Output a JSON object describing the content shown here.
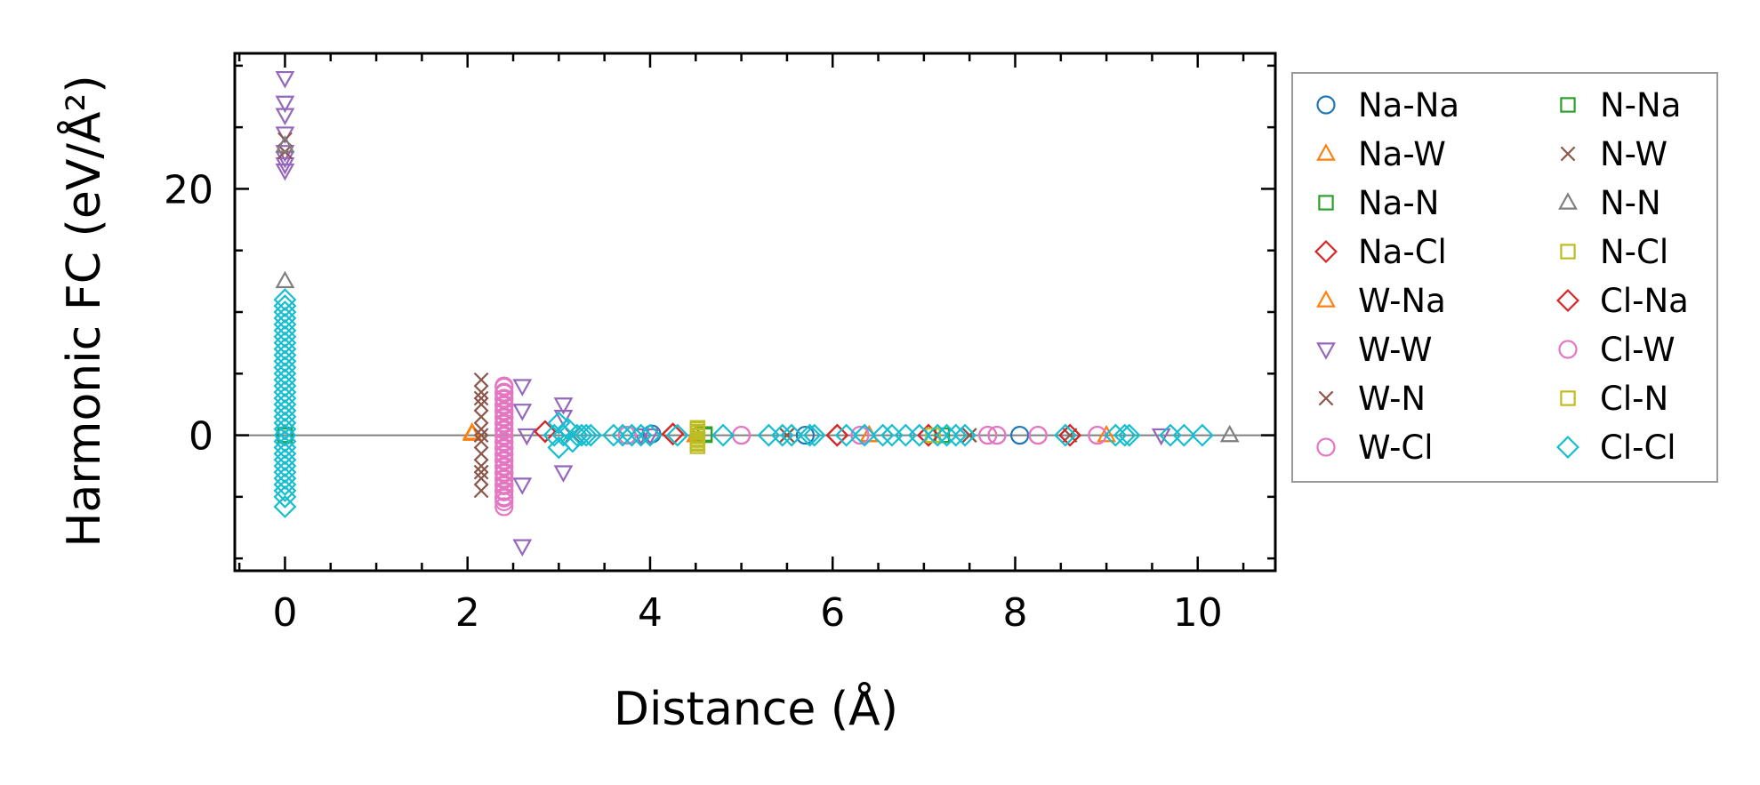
{
  "chart_data": {
    "type": "scatter",
    "xlabel": "Distance (Å)",
    "ylabel": "Harmonic FC (eV/Å²)",
    "xlim": [
      -0.55,
      10.85
    ],
    "ylim": [
      -11,
      31
    ],
    "x_ticks": [
      0,
      2,
      4,
      6,
      8,
      10
    ],
    "y_ticks": [
      0,
      20
    ],
    "reference_line_y": 0,
    "legend_position": "outside-right",
    "series": [
      {
        "name": "Na-Na",
        "marker": "circle",
        "color": "#1f77b4",
        "x": [
          0,
          4.02,
          5.7,
          8.05
        ],
        "y": [
          0,
          0.1,
          0,
          0
        ]
      },
      {
        "name": "Na-W",
        "marker": "triangle-up",
        "color": "#ff7f0e",
        "x": [
          2.05,
          4.5,
          6.4,
          9.0
        ],
        "y": [
          0.2,
          0,
          0,
          0
        ]
      },
      {
        "name": "Na-N",
        "marker": "square",
        "color": "#2ca02c",
        "x": [
          0,
          4.6,
          7.2
        ],
        "y": [
          0,
          0.1,
          0
        ]
      },
      {
        "name": "Na-Cl",
        "marker": "diamond",
        "color": "#d62728",
        "x": [
          2.85,
          4.25,
          6.05,
          7.05,
          8.6
        ],
        "y": [
          0.3,
          0.1,
          0,
          0,
          0
        ]
      },
      {
        "name": "W-Na",
        "marker": "triangle-up",
        "color": "#ff7f0e",
        "x": [
          2.05,
          4.5,
          6.4
        ],
        "y": [
          0.1,
          0,
          0
        ]
      },
      {
        "name": "W-W",
        "marker": "triangle-down",
        "color": "#9467bd",
        "x": [
          0,
          0,
          0,
          0,
          0,
          0,
          0,
          0,
          2.6,
          2.6,
          2.6,
          2.6,
          2.65,
          3.05,
          3.05,
          3.05,
          3.9,
          4.0,
          9.6
        ],
        "y": [
          29,
          27,
          26,
          24.5,
          23,
          22.5,
          22,
          21.5,
          4,
          2,
          -4,
          -9,
          0,
          2.5,
          1.5,
          -3,
          0,
          0,
          0
        ]
      },
      {
        "name": "W-N",
        "marker": "x",
        "color": "#8c564b",
        "x": [
          0,
          0,
          2.15,
          2.15,
          2.15,
          2.15,
          2.15,
          2.15,
          2.15,
          2.15,
          2.15,
          2.15,
          2.15,
          2.15,
          2.15,
          3.15,
          5.5,
          7.5
        ],
        "y": [
          24,
          23,
          4.5,
          3.5,
          2.5,
          1.5,
          0.5,
          -0.5,
          -1.5,
          -2.5,
          -3.5,
          -4.5,
          3,
          -3,
          0,
          0,
          0,
          0
        ]
      },
      {
        "name": "W-Cl",
        "marker": "circle",
        "color": "#e377c2",
        "x": [
          2.4,
          2.4,
          2.4,
          2.4,
          2.4,
          2.4,
          2.4,
          2.4,
          2.4,
          2.4,
          2.4,
          2.4,
          2.4,
          2.4,
          2.4,
          2.4,
          2.4,
          2.4,
          2.4,
          2.4,
          3.75,
          5.0,
          6.3,
          7.7,
          7.8,
          8.25,
          8.9
        ],
        "y": [
          4,
          3.5,
          3,
          2.5,
          2,
          1.5,
          1,
          0.5,
          0,
          -0.5,
          -1,
          -1.5,
          -2,
          -2.5,
          -3,
          -3.5,
          -4,
          -4.5,
          -5,
          -5.8,
          0,
          0,
          0,
          0,
          0,
          0,
          0
        ]
      },
      {
        "name": "N-Na",
        "marker": "square",
        "color": "#2ca02c",
        "x": [
          4.6,
          7.2
        ],
        "y": [
          0,
          0
        ]
      },
      {
        "name": "N-W",
        "marker": "x",
        "color": "#8c564b",
        "x": [
          3.15,
          5.5,
          7.5,
          8.6
        ],
        "y": [
          0,
          0,
          0,
          0
        ]
      },
      {
        "name": "N-N",
        "marker": "triangle-up",
        "color": "#7f7f7f",
        "x": [
          0,
          0,
          10.35
        ],
        "y": [
          12.5,
          23.5,
          0
        ]
      },
      {
        "name": "N-Cl",
        "marker": "square",
        "color": "#bcbd22",
        "x": [
          4.52,
          4.52,
          4.52,
          4.52,
          4.52,
          4.52,
          7.1
        ],
        "y": [
          0.6,
          0.3,
          0,
          -0.3,
          -0.6,
          -0.9,
          0
        ]
      },
      {
        "name": "Cl-Na",
        "marker": "diamond",
        "color": "#d62728",
        "x": [
          2.85,
          4.25,
          6.05,
          7.05,
          8.6
        ],
        "y": [
          0.3,
          0.1,
          0,
          0,
          0
        ]
      },
      {
        "name": "Cl-W",
        "marker": "circle",
        "color": "#e377c2",
        "x": [
          2.4,
          2.4,
          2.4,
          2.4,
          2.4,
          2.4,
          2.4,
          2.4,
          2.4,
          2.4,
          2.4,
          2.4,
          2.4,
          2.4,
          2.4,
          2.4,
          2.4,
          2.4,
          2.4,
          2.4,
          3.75,
          5.0,
          6.3,
          7.7,
          7.8,
          8.25,
          8.9
        ],
        "y": [
          3.9,
          3.4,
          2.9,
          2.4,
          1.9,
          1.4,
          0.9,
          0.4,
          -0.1,
          -0.6,
          -1.1,
          -1.6,
          -2.1,
          -2.6,
          -3.1,
          -3.6,
          -4.1,
          -4.6,
          -5.1,
          -5.4,
          0,
          0,
          0,
          0,
          0,
          0,
          0
        ]
      },
      {
        "name": "Cl-N",
        "marker": "square",
        "color": "#bcbd22",
        "x": [
          4.52,
          4.52,
          4.52,
          4.52,
          4.52,
          7.1
        ],
        "y": [
          0.5,
          0.2,
          -0.1,
          -0.4,
          -0.7,
          0
        ]
      },
      {
        "name": "Cl-Cl",
        "marker": "diamond",
        "color": "#17becf",
        "x": [
          0,
          0,
          0,
          0,
          0,
          0,
          0,
          0,
          0,
          0,
          0,
          0,
          0,
          0,
          0,
          0,
          0,
          0,
          0,
          0,
          0,
          0,
          0,
          0,
          0,
          0,
          0,
          0,
          0,
          0,
          0,
          0,
          0,
          0,
          2.95,
          3.0,
          3.0,
          3.05,
          3.1,
          3.15,
          3.2,
          3.25,
          3.3,
          3.35,
          3.6,
          3.7,
          3.8,
          3.9,
          4.0,
          4.3,
          4.8,
          5.3,
          5.45,
          5.55,
          5.75,
          5.8,
          6.15,
          6.35,
          6.55,
          6.65,
          6.8,
          6.95,
          7.15,
          7.25,
          7.35,
          7.45,
          8.55,
          9.1,
          9.2,
          9.25,
          9.7,
          9.85,
          10.05
        ],
        "y": [
          11,
          10.5,
          10,
          9.5,
          9,
          8.5,
          8,
          7.5,
          7,
          6.5,
          6,
          5.5,
          5,
          4.5,
          4,
          3.5,
          3,
          2.5,
          2,
          1.5,
          1,
          0.5,
          0,
          -0.5,
          -1,
          -1.5,
          -2,
          -2.5,
          -3,
          -3.5,
          -4,
          -4.5,
          -5,
          -5.8,
          0,
          1,
          -1,
          0,
          0.5,
          -0.5,
          0,
          0,
          0,
          0,
          0,
          0,
          0,
          0,
          0,
          0,
          0,
          0,
          0,
          0,
          0,
          0,
          0,
          0,
          0,
          0,
          0,
          0,
          0,
          0,
          0,
          0,
          0,
          0,
          0,
          0,
          0,
          0,
          0
        ]
      }
    ]
  }
}
